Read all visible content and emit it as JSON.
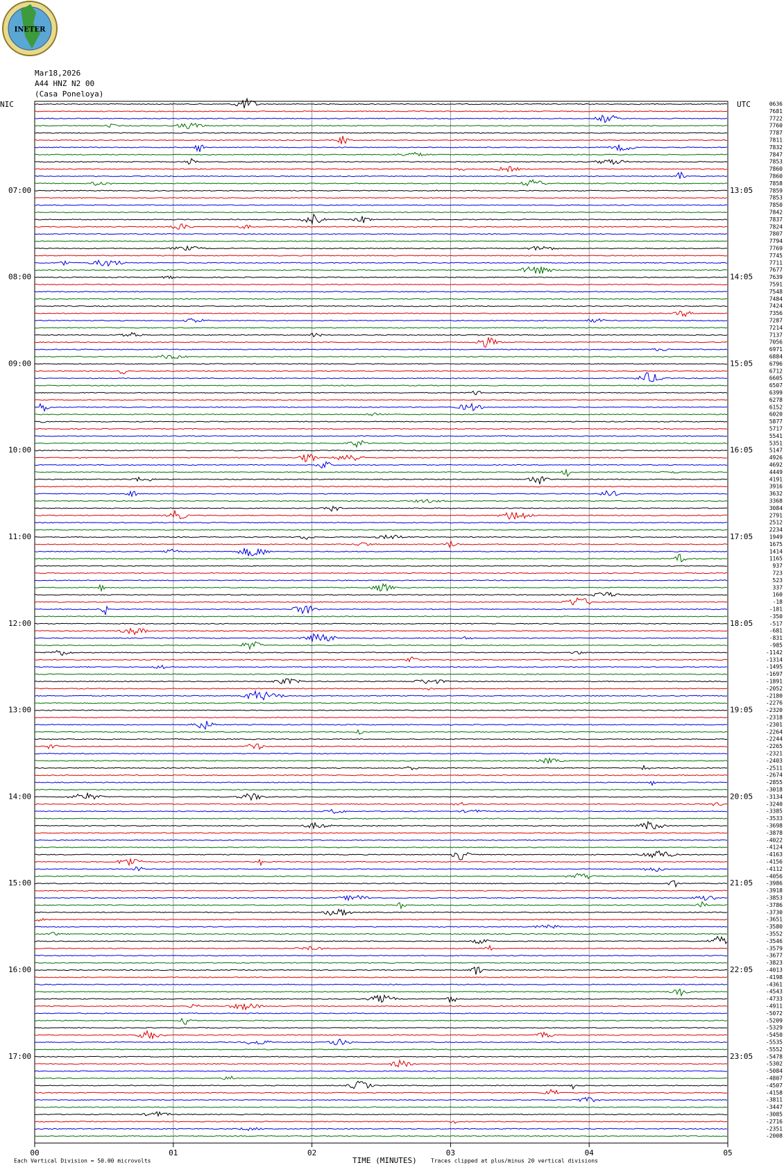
{
  "logo_text": "INETER",
  "header": {
    "date": "Mar18,2026",
    "station": "A44 HNZ N2 00",
    "location": "(Casa Poneloya)"
  },
  "left_zone": "NIC",
  "right_zone": "UTC",
  "hour_labels_left": [
    "07:00",
    "08:00",
    "09:00",
    "10:00",
    "11:00",
    "12:00",
    "13:00",
    "14:00",
    "15:00",
    "16:00",
    "17:00"
  ],
  "hour_labels_right": [
    "13:05",
    "14:05",
    "15:05",
    "16:05",
    "17:05",
    "18:05",
    "19:05",
    "20:05",
    "21:05",
    "22:05",
    "23:05"
  ],
  "trace_labels": [
    "0636",
    "7681",
    "7722",
    "7760",
    "7787",
    "7811",
    "7832",
    "7847",
    "7853",
    "7860",
    "7860",
    "7858",
    "7859",
    "7853",
    "7850",
    "7842",
    "7837",
    "7824",
    "7807",
    "7794",
    "7769",
    "7745",
    "7711",
    "7677",
    "7639",
    "7591",
    "7548",
    "7484",
    "7424",
    "7356",
    "7287",
    "7214",
    "7137",
    "7056",
    "6971",
    "6884",
    "6796",
    "6712",
    "6605",
    "6507",
    "6399",
    "6278",
    "6152",
    "6020",
    "5877",
    "5717",
    "5541",
    "5351",
    "5147",
    "4926",
    "4692",
    "4449",
    "4191",
    "3916",
    "3632",
    "3368",
    "3084",
    "2791",
    "2512",
    "2234",
    "1949",
    "1675",
    "1414",
    "1165",
    "937",
    "723",
    "523",
    "337",
    "160",
    "-18",
    "-181",
    "-350",
    "-517",
    "-681",
    "-831",
    "-985",
    "-1142",
    "-1314",
    "-1495",
    "-1697",
    "-1891",
    "-2052",
    "-2180",
    "-2276",
    "-2320",
    "-2318",
    "-2301",
    "-2264",
    "-2244",
    "-2265",
    "-2321",
    "-2403",
    "-2511",
    "-2674",
    "-2855",
    "-3018",
    "-3134",
    "-3240",
    "-3385",
    "-3533",
    "-3698",
    "-3878",
    "-4022",
    "-4124",
    "-4163",
    "-4156",
    "-4112",
    "-4056",
    "-3986",
    "-3918",
    "-3853",
    "-3786",
    "-3730",
    "-3651",
    "-3580",
    "-3552",
    "-3546",
    "-3579",
    "-3677",
    "-3823",
    "-4013",
    "-4198",
    "-4361",
    "-4543",
    "-4733",
    "-4911",
    "-5072",
    "-5209",
    "-5329",
    "-5450",
    "-5535",
    "-5552",
    "-5478",
    "-5302",
    "-5084",
    "-4807",
    "-4507",
    "-4158",
    "-3811",
    "-3447",
    "-3085",
    "-2716",
    "-2351",
    "-2008"
  ],
  "x_labels": [
    "00",
    "01",
    "02",
    "03",
    "04",
    "05"
  ],
  "footer": {
    "scale": "Each Vertical Division =   50.00 microvolts",
    "axis_title": "TIME (MINUTES)",
    "clip_note": "Traces clipped at plus/minus 20 vertical divisions"
  }
}
